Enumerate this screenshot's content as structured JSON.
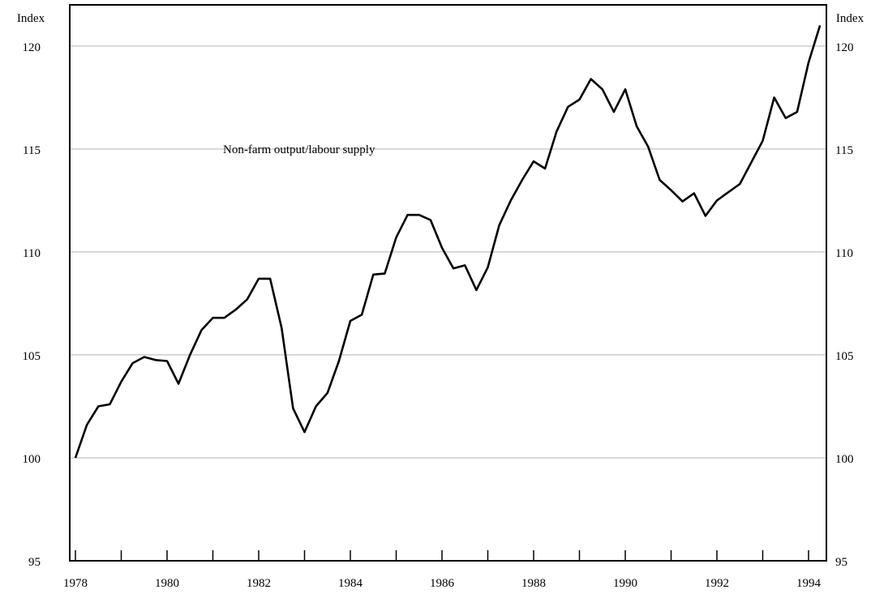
{
  "chart_data": {
    "type": "line",
    "left_unit": "Index",
    "right_unit": "Index",
    "annotation": "Non-farm output/labour supply",
    "ylim": [
      95,
      122
    ],
    "y_ticks": [
      95,
      100,
      105,
      110,
      115,
      120
    ],
    "x_tick_labels": [
      "1978",
      "1980",
      "1982",
      "1984",
      "1986",
      "1988",
      "1990",
      "1992",
      "1994"
    ],
    "x_range": [
      1978.0,
      1994.95
    ],
    "grid": "horizontal",
    "series": [
      {
        "values": [
          [
            1978.0,
            100.0
          ],
          [
            1978.25,
            101.6
          ],
          [
            1978.5,
            102.5
          ],
          [
            1978.75,
            102.6
          ],
          [
            1979.0,
            103.7
          ],
          [
            1979.25,
            104.6
          ],
          [
            1979.5,
            104.9
          ],
          [
            1979.75,
            104.75
          ],
          [
            1980.0,
            104.7
          ],
          [
            1980.25,
            103.6
          ],
          [
            1980.5,
            105.0
          ],
          [
            1980.75,
            106.2
          ],
          [
            1981.0,
            106.8
          ],
          [
            1981.25,
            106.8
          ],
          [
            1981.5,
            107.2
          ],
          [
            1981.75,
            107.7
          ],
          [
            1982.0,
            108.7
          ],
          [
            1982.25,
            108.7
          ],
          [
            1982.5,
            106.3
          ],
          [
            1982.75,
            102.4
          ],
          [
            1983.0,
            101.25
          ],
          [
            1983.25,
            102.5
          ],
          [
            1983.5,
            103.15
          ],
          [
            1983.75,
            104.7
          ],
          [
            1984.0,
            106.65
          ],
          [
            1984.25,
            106.95
          ],
          [
            1984.5,
            108.9
          ],
          [
            1984.75,
            108.95
          ],
          [
            1985.0,
            110.7
          ],
          [
            1985.25,
            111.8
          ],
          [
            1985.5,
            111.8
          ],
          [
            1985.75,
            111.55
          ],
          [
            1986.0,
            110.2
          ],
          [
            1986.25,
            109.2
          ],
          [
            1986.5,
            109.35
          ],
          [
            1986.75,
            108.15
          ],
          [
            1987.0,
            109.25
          ],
          [
            1987.25,
            111.3
          ],
          [
            1987.5,
            112.5
          ],
          [
            1987.75,
            113.5
          ],
          [
            1988.0,
            114.4
          ],
          [
            1988.25,
            114.05
          ],
          [
            1988.5,
            115.85
          ],
          [
            1988.75,
            117.05
          ],
          [
            1989.0,
            117.4
          ],
          [
            1989.25,
            118.4
          ],
          [
            1989.5,
            117.9
          ],
          [
            1989.75,
            116.8
          ],
          [
            1990.0,
            117.9
          ],
          [
            1990.25,
            116.1
          ],
          [
            1990.5,
            115.1
          ],
          [
            1990.75,
            113.5
          ],
          [
            1991.0,
            113.0
          ],
          [
            1991.25,
            112.45
          ],
          [
            1991.5,
            112.85
          ],
          [
            1991.75,
            111.75
          ],
          [
            1992.0,
            112.5
          ],
          [
            1992.25,
            112.9
          ],
          [
            1992.5,
            113.3
          ],
          [
            1992.75,
            114.35
          ],
          [
            1993.0,
            115.4
          ],
          [
            1993.25,
            117.5
          ],
          [
            1993.5,
            116.5
          ],
          [
            1993.75,
            116.8
          ],
          [
            1994.0,
            119.2
          ],
          [
            1994.25,
            121.0
          ]
        ]
      }
    ]
  }
}
